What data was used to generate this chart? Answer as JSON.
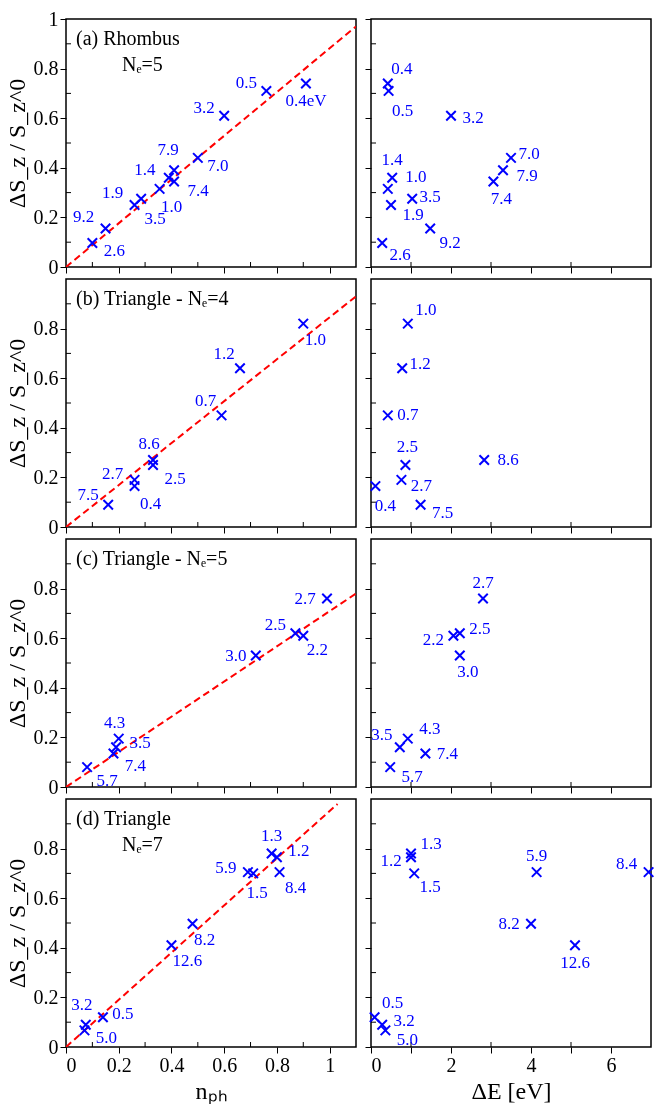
{
  "chart_data": [
    {
      "type": "scatter",
      "title": "(a) Rhombus",
      "subtitle": "Nₑ=5",
      "ylabel": "ΔS_z / S_z^0",
      "tick_labels": "y",
      "xlim": [
        0,
        1.1
      ],
      "ylim": [
        0,
        1
      ],
      "xticks": [
        0,
        {
          "value": 0.1,
          "label": null
        },
        0.2,
        {
          "value": 0.3,
          "label": null
        },
        0.4,
        {
          "value": 0.5,
          "label": null
        },
        0.6,
        {
          "value": 0.7,
          "label": null
        },
        0.8,
        {
          "value": 0.9,
          "label": null
        },
        1
      ],
      "yticks": [
        0,
        {
          "value": 0.1,
          "label": null
        },
        0.2,
        {
          "value": 0.3,
          "label": null
        },
        0.4,
        {
          "value": 0.5,
          "label": null
        },
        0.6,
        {
          "value": 0.7,
          "label": null
        },
        0.8,
        {
          "value": 0.9,
          "label": null
        },
        1
      ],
      "series": [
        {
          "type": "line",
          "color": "#ff0000",
          "line_style": "dashed",
          "x": [
            0,
            1.1
          ],
          "values": [
            0,
            0.97
          ]
        },
        {
          "type": "scatter",
          "color": "#0000ff",
          "marker": "cross",
          "x": [
            0.91,
            0.76,
            0.6,
            0.5,
            0.41,
            0.41,
            0.39,
            0.355,
            0.285,
            0.26,
            0.15,
            0.1
          ],
          "values": [
            0.74,
            0.71,
            0.61,
            0.44,
            0.39,
            0.345,
            0.36,
            0.315,
            0.275,
            0.25,
            0.155,
            0.097
          ]
        }
      ],
      "annotations": [
        {
          "text": "0.4eV",
          "x": 0.91,
          "y": 0.74
        },
        {
          "text": "0.5",
          "x": 0.76,
          "y": 0.71
        },
        {
          "text": "3.2",
          "x": 0.6,
          "y": 0.61
        },
        {
          "text": "7.0",
          "x": 0.5,
          "y": 0.44
        },
        {
          "text": "7.9",
          "x": 0.41,
          "y": 0.39
        },
        {
          "text": "7.4",
          "x": 0.41,
          "y": 0.345
        },
        {
          "text": "1.4",
          "x": 0.39,
          "y": 0.36
        },
        {
          "text": "1.0",
          "x": 0.355,
          "y": 0.315
        },
        {
          "text": "3.5",
          "x": 0.285,
          "y": 0.275
        },
        {
          "text": "1.9",
          "x": 0.26,
          "y": 0.25
        },
        {
          "text": "9.2",
          "x": 0.15,
          "y": 0.155
        },
        {
          "text": "2.6",
          "x": 0.1,
          "y": 0.097
        }
      ]
    },
    {
      "type": "scatter",
      "tick_labels": false,
      "xlim": [
        0,
        7
      ],
      "ylim": [
        0,
        1
      ],
      "xticks": [
        0,
        {
          "value": 1,
          "label": null
        },
        2,
        {
          "value": 3,
          "label": null
        },
        4,
        {
          "value": 5,
          "label": null
        },
        6
      ],
      "yticks": [
        0,
        {
          "value": 0.1,
          "label": null
        },
        0.2,
        {
          "value": 0.3,
          "label": null
        },
        0.4,
        {
          "value": 0.5,
          "label": null
        },
        0.6,
        {
          "value": 0.7,
          "label": null
        },
        0.8,
        {
          "value": 0.9,
          "label": null
        },
        1
      ],
      "series": [
        {
          "type": "scatter",
          "color": "#0000ff",
          "marker": "cross",
          "x": [
            0.42,
            0.44,
            2.0,
            3.5,
            3.3,
            3.06,
            0.53,
            0.42,
            1.03,
            0.5,
            1.48,
            0.28
          ],
          "values": [
            0.74,
            0.71,
            0.61,
            0.44,
            0.39,
            0.345,
            0.36,
            0.315,
            0.275,
            0.25,
            0.155,
            0.097
          ]
        }
      ],
      "annotations": [
        {
          "text": "0.4",
          "x": 0.42,
          "y": 0.74
        },
        {
          "text": "0.5",
          "x": 0.44,
          "y": 0.71
        },
        {
          "text": "3.2",
          "x": 2.0,
          "y": 0.61
        },
        {
          "text": "7.0",
          "x": 3.5,
          "y": 0.44
        },
        {
          "text": "7.9",
          "x": 3.3,
          "y": 0.39
        },
        {
          "text": "7.4",
          "x": 3.06,
          "y": 0.345
        },
        {
          "text": "1.4",
          "x": 0.53,
          "y": 0.36
        },
        {
          "text": "1.0",
          "x": 0.42,
          "y": 0.315
        },
        {
          "text": "3.5",
          "x": 1.03,
          "y": 0.275
        },
        {
          "text": "1.9",
          "x": 0.5,
          "y": 0.25
        },
        {
          "text": "9.2",
          "x": 1.48,
          "y": 0.155
        },
        {
          "text": "2.6",
          "x": 0.28,
          "y": 0.097
        }
      ]
    },
    {
      "type": "scatter",
      "title": "(b) Triangle  -  Nₑ=4",
      "ylabel": "ΔS_z / S_z^0",
      "tick_labels": "y",
      "xlim": [
        0,
        1.1
      ],
      "ylim": [
        0,
        1
      ],
      "xticks": [
        0,
        {
          "value": 0.1,
          "label": null
        },
        0.2,
        {
          "value": 0.3,
          "label": null
        },
        0.4,
        {
          "value": 0.5,
          "label": null
        },
        0.6,
        {
          "value": 0.7,
          "label": null
        },
        0.8,
        {
          "value": 0.9,
          "label": null
        },
        1
      ],
      "yticks": [
        0,
        {
          "value": 0.1,
          "label": null
        },
        0.2,
        {
          "value": 0.3,
          "label": null
        },
        0.4,
        {
          "value": 0.5,
          "label": null
        },
        0.6,
        {
          "value": 0.7,
          "label": null
        },
        0.8,
        {
          "value": 0.9,
          "label": null
        }
      ],
      "series": [
        {
          "type": "line",
          "color": "#ff0000",
          "line_style": "dashed",
          "x": [
            0,
            1.1
          ],
          "values": [
            0,
            0.93
          ]
        },
        {
          "type": "scatter",
          "color": "#0000ff",
          "marker": "cross",
          "x": [
            0.9,
            0.66,
            0.59,
            0.33,
            0.33,
            0.26,
            0.26,
            0.16
          ],
          "values": [
            0.82,
            0.64,
            0.45,
            0.27,
            0.25,
            0.19,
            0.165,
            0.09
          ]
        }
      ],
      "annotations": [
        {
          "text": "1.0",
          "x": 0.9,
          "y": 0.82
        },
        {
          "text": "1.2",
          "x": 0.66,
          "y": 0.64
        },
        {
          "text": "0.7",
          "x": 0.59,
          "y": 0.45
        },
        {
          "text": "8.6",
          "x": 0.33,
          "y": 0.27
        },
        {
          "text": "2.5",
          "x": 0.33,
          "y": 0.25
        },
        {
          "text": "2.7",
          "x": 0.26,
          "y": 0.19
        },
        {
          "text": "0.4",
          "x": 0.26,
          "y": 0.165
        },
        {
          "text": "7.5",
          "x": 0.16,
          "y": 0.09
        }
      ]
    },
    {
      "type": "scatter",
      "tick_labels": false,
      "xlim": [
        0,
        7
      ],
      "ylim": [
        0,
        1
      ],
      "xticks": [
        0,
        {
          "value": 1,
          "label": null
        },
        2,
        {
          "value": 3,
          "label": null
        },
        4,
        {
          "value": 5,
          "label": null
        },
        6
      ],
      "yticks": [
        0,
        {
          "value": 0.1,
          "label": null
        },
        0.2,
        {
          "value": 0.3,
          "label": null
        },
        0.4,
        {
          "value": 0.5,
          "label": null
        },
        0.6,
        {
          "value": 0.7,
          "label": null
        },
        0.8,
        {
          "value": 0.9,
          "label": null
        }
      ],
      "series": [
        {
          "type": "scatter",
          "color": "#0000ff",
          "marker": "cross",
          "x": [
            0.92,
            0.78,
            0.42,
            2.83,
            0.86,
            0.76,
            0.11,
            1.24
          ],
          "values": [
            0.82,
            0.64,
            0.45,
            0.27,
            0.25,
            0.19,
            0.165,
            0.09
          ]
        }
      ],
      "annotations": [
        {
          "text": "1.0",
          "x": 0.92,
          "y": 0.82
        },
        {
          "text": "1.2",
          "x": 0.78,
          "y": 0.64
        },
        {
          "text": "0.7",
          "x": 0.42,
          "y": 0.45
        },
        {
          "text": "8.6",
          "x": 2.83,
          "y": 0.27
        },
        {
          "text": "2.5",
          "x": 0.86,
          "y": 0.25
        },
        {
          "text": "2.7",
          "x": 0.76,
          "y": 0.19
        },
        {
          "text": "0.4",
          "x": 0.11,
          "y": 0.165
        },
        {
          "text": "7.5",
          "x": 1.24,
          "y": 0.09
        }
      ]
    },
    {
      "type": "scatter",
      "title": "(c) Triangle  -  Nₑ=5",
      "ylabel": "ΔS_z / S_z^0",
      "tick_labels": "y",
      "xlim": [
        0,
        1.1
      ],
      "ylim": [
        0,
        1
      ],
      "xticks": [
        0,
        {
          "value": 0.1,
          "label": null
        },
        0.2,
        {
          "value": 0.3,
          "label": null
        },
        0.4,
        {
          "value": 0.5,
          "label": null
        },
        0.6,
        {
          "value": 0.7,
          "label": null
        },
        0.8,
        {
          "value": 0.9,
          "label": null
        },
        1
      ],
      "yticks": [
        0,
        {
          "value": 0.1,
          "label": null
        },
        0.2,
        {
          "value": 0.3,
          "label": null
        },
        0.4,
        {
          "value": 0.5,
          "label": null
        },
        0.6,
        {
          "value": 0.7,
          "label": null
        },
        0.8,
        {
          "value": 0.9,
          "label": null
        }
      ],
      "series": [
        {
          "type": "line",
          "color": "#ff0000",
          "line_style": "dashed",
          "x": [
            0,
            1.1
          ],
          "values": [
            0,
            0.78
          ]
        },
        {
          "type": "scatter",
          "color": "#0000ff",
          "marker": "cross",
          "x": [
            0.99,
            0.87,
            0.9,
            0.72,
            0.2,
            0.19,
            0.18,
            0.08
          ],
          "values": [
            0.76,
            0.62,
            0.61,
            0.53,
            0.195,
            0.16,
            0.135,
            0.08
          ]
        }
      ],
      "annotations": [
        {
          "text": "2.7",
          "x": 0.99,
          "y": 0.76
        },
        {
          "text": "2.5",
          "x": 0.87,
          "y": 0.62
        },
        {
          "text": "2.2",
          "x": 0.9,
          "y": 0.61
        },
        {
          "text": "3.0",
          "x": 0.72,
          "y": 0.53
        },
        {
          "text": "4.3",
          "x": 0.2,
          "y": 0.195
        },
        {
          "text": "3.5",
          "x": 0.19,
          "y": 0.16
        },
        {
          "text": "7.4",
          "x": 0.18,
          "y": 0.135
        },
        {
          "text": "5.7",
          "x": 0.08,
          "y": 0.08
        }
      ]
    },
    {
      "type": "scatter",
      "tick_labels": false,
      "xlim": [
        0,
        7
      ],
      "ylim": [
        0,
        1
      ],
      "xticks": [
        0,
        {
          "value": 1,
          "label": null
        },
        2,
        {
          "value": 3,
          "label": null
        },
        4,
        {
          "value": 5,
          "label": null
        },
        6
      ],
      "yticks": [
        0,
        {
          "value": 0.1,
          "label": null
        },
        0.2,
        {
          "value": 0.3,
          "label": null
        },
        0.4,
        {
          "value": 0.5,
          "label": null
        },
        0.6,
        {
          "value": 0.7,
          "label": null
        },
        0.8,
        {
          "value": 0.9,
          "label": null
        }
      ],
      "series": [
        {
          "type": "scatter",
          "color": "#0000ff",
          "marker": "cross",
          "x": [
            2.8,
            2.22,
            2.06,
            2.22,
            0.92,
            0.72,
            1.36,
            0.48
          ],
          "values": [
            0.76,
            0.62,
            0.61,
            0.53,
            0.195,
            0.16,
            0.135,
            0.08
          ]
        }
      ],
      "annotations": [
        {
          "text": "2.7",
          "x": 2.8,
          "y": 0.76
        },
        {
          "text": "2.5",
          "x": 2.22,
          "y": 0.62
        },
        {
          "text": "2.2",
          "x": 2.06,
          "y": 0.61
        },
        {
          "text": "3.0",
          "x": 2.22,
          "y": 0.53
        },
        {
          "text": "4.3",
          "x": 0.92,
          "y": 0.195
        },
        {
          "text": "3.5",
          "x": 0.72,
          "y": 0.16
        },
        {
          "text": "7.4",
          "x": 1.36,
          "y": 0.135
        },
        {
          "text": "5.7",
          "x": 0.48,
          "y": 0.08
        }
      ]
    },
    {
      "type": "scatter",
      "title": "(d) Triangle",
      "subtitle": "Nₑ=7",
      "ylabel": "ΔS_z / S_z^0",
      "xlabel": "nₚₕ",
      "xlim": [
        0,
        1.1
      ],
      "ylim": [
        0,
        1
      ],
      "xticks": [
        0,
        {
          "value": 0.1,
          "label": null
        },
        0.2,
        {
          "value": 0.3,
          "label": null
        },
        0.4,
        {
          "value": 0.5,
          "label": null
        },
        0.6,
        {
          "value": 0.7,
          "label": null
        },
        0.8,
        {
          "value": 0.9,
          "label": null
        },
        1
      ],
      "yticks": [
        0,
        {
          "value": 0.1,
          "label": null
        },
        0.2,
        {
          "value": 0.3,
          "label": null
        },
        0.4,
        {
          "value": 0.5,
          "label": null
        },
        0.6,
        {
          "value": 0.7,
          "label": null
        },
        0.8,
        {
          "value": 0.9,
          "label": null
        }
      ],
      "series": [
        {
          "type": "line",
          "color": "#ff0000",
          "line_style": "dashed",
          "x": [
            0,
            1.03
          ],
          "values": [
            0,
            0.98
          ]
        },
        {
          "type": "scatter",
          "color": "#0000ff",
          "marker": "cross",
          "x": [
            0.78,
            0.8,
            0.81,
            0.69,
            0.71,
            0.48,
            0.4,
            0.075,
            0.14,
            0.07
          ],
          "values": [
            0.78,
            0.765,
            0.705,
            0.705,
            0.7,
            0.497,
            0.41,
            0.09,
            0.12,
            0.067
          ]
        }
      ],
      "annotations": [
        {
          "text": "1.3",
          "x": 0.78,
          "y": 0.78
        },
        {
          "text": "1.2",
          "x": 0.8,
          "y": 0.765
        },
        {
          "text": "8.4",
          "x": 0.81,
          "y": 0.705
        },
        {
          "text": "5.9",
          "x": 0.69,
          "y": 0.705
        },
        {
          "text": "1.5",
          "x": 0.71,
          "y": 0.7
        },
        {
          "text": "8.2",
          "x": 0.48,
          "y": 0.497
        },
        {
          "text": "12.6",
          "x": 0.4,
          "y": 0.41
        },
        {
          "text": "3.2",
          "x": 0.075,
          "y": 0.09
        },
        {
          "text": "0.5",
          "x": 0.14,
          "y": 0.12
        },
        {
          "text": "5.0",
          "x": 0.07,
          "y": 0.067
        }
      ]
    },
    {
      "type": "scatter",
      "xlabel": "ΔE  [eV]",
      "tick_labels": "x",
      "xlim": [
        0,
        7
      ],
      "ylim": [
        0,
        1
      ],
      "xticks": [
        0,
        {
          "value": 1,
          "label": null
        },
        2,
        {
          "value": 3,
          "label": null
        },
        4,
        {
          "value": 5,
          "label": null
        },
        6
      ],
      "yticks": [
        0,
        {
          "value": 0.1,
          "label": null
        },
        0.2,
        {
          "value": 0.3,
          "label": null
        },
        0.4,
        {
          "value": 0.5,
          "label": null
        },
        0.6,
        {
          "value": 0.7,
          "label": null
        },
        0.8,
        {
          "value": 0.9,
          "label": null
        }
      ],
      "series": [
        {
          "type": "scatter",
          "color": "#0000ff",
          "marker": "cross",
          "x": [
            1.0,
            1.0,
            6.94,
            4.14,
            1.08,
            4.0,
            5.1,
            0.28,
            0.09,
            0.36
          ],
          "values": [
            0.78,
            0.765,
            0.705,
            0.705,
            0.7,
            0.497,
            0.41,
            0.09,
            0.12,
            0.067
          ]
        }
      ],
      "annotations": [
        {
          "text": "1.3",
          "x": 1.0,
          "y": 0.78
        },
        {
          "text": "1.2",
          "x": 1.0,
          "y": 0.765
        },
        {
          "text": "8.4",
          "x": 6.94,
          "y": 0.705
        },
        {
          "text": "5.9",
          "x": 4.14,
          "y": 0.705
        },
        {
          "text": "1.5",
          "x": 1.08,
          "y": 0.7
        },
        {
          "text": "8.2",
          "x": 4.0,
          "y": 0.497
        },
        {
          "text": "12.6",
          "x": 5.1,
          "y": 0.41
        },
        {
          "text": "3.2",
          "x": 0.28,
          "y": 0.09
        },
        {
          "text": "0.5",
          "x": 0.09,
          "y": 0.12
        },
        {
          "text": "5.0",
          "x": 0.36,
          "y": 0.067
        }
      ]
    }
  ]
}
